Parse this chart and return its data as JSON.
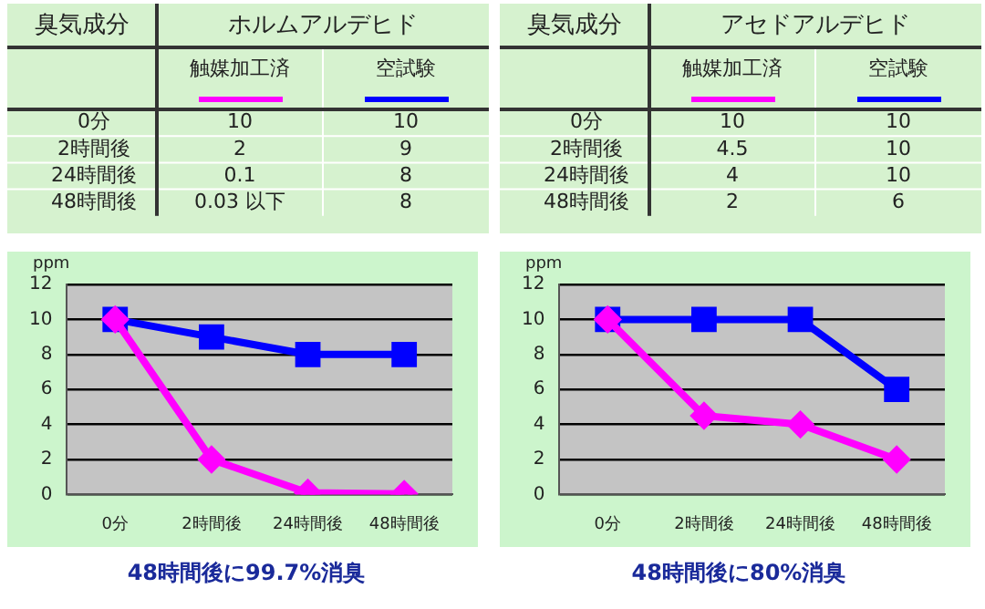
{
  "chart_data": [
    {
      "type": "heatmap",
      "title": "ホルムアルデヒド",
      "xlabel": "臭気成分",
      "categories": [
        "触媒加工済",
        "空試験"
      ],
      "y_categories": [
        "0分",
        "2時間後",
        "24時間後",
        "48時間後"
      ],
      "cells": [
        [
          10,
          10
        ],
        [
          2,
          9
        ],
        [
          0.1,
          8
        ],
        [
          0.03,
          8
        ]
      ],
      "cell_labels": [
        [
          "10",
          "10"
        ],
        [
          "2",
          "9"
        ],
        [
          "0.1",
          "8"
        ],
        [
          "0.03 以下",
          "8"
        ]
      ],
      "data_labels": true
    },
    {
      "type": "heatmap",
      "title": "アセドアルデヒド",
      "xlabel": "臭気成分",
      "categories": [
        "触媒加工済",
        "空試験"
      ],
      "y_categories": [
        "0分",
        "2時間後",
        "24時間後",
        "48時間後"
      ],
      "cells": [
        [
          10,
          10
        ],
        [
          4.5,
          10
        ],
        [
          4,
          10
        ],
        [
          2,
          6
        ]
      ],
      "data_labels": true
    },
    {
      "type": "line",
      "ylabel": "ppm",
      "categories": [
        "0分",
        "2時間後",
        "24時間後",
        "48時間後"
      ],
      "series": [
        {
          "color": "#ff00ff",
          "marker": "diamond",
          "values": [
            10,
            2,
            0.1,
            0.03
          ]
        },
        {
          "color": "#0000ff",
          "marker": "square",
          "values": [
            10,
            9,
            8,
            8
          ]
        }
      ],
      "ylim": [
        0,
        12
      ],
      "yticks": [
        0,
        2,
        4,
        6,
        8,
        10,
        12
      ],
      "grid": "y",
      "annotations": [
        "48時間後に99.7%消臭"
      ]
    },
    {
      "type": "line",
      "ylabel": "ppm",
      "categories": [
        "0分",
        "2時間後",
        "24時間後",
        "48時間後"
      ],
      "series": [
        {
          "color": "#ff00ff",
          "marker": "diamond",
          "values": [
            10,
            4.5,
            4,
            2
          ]
        },
        {
          "color": "#0000ff",
          "marker": "square",
          "values": [
            10,
            10,
            10,
            6
          ]
        }
      ],
      "ylim": [
        0,
        12
      ],
      "yticks": [
        0,
        2,
        4,
        6,
        8,
        10,
        12
      ],
      "grid": "y",
      "annotations": [
        "48時間後に80%消臭"
      ]
    }
  ]
}
